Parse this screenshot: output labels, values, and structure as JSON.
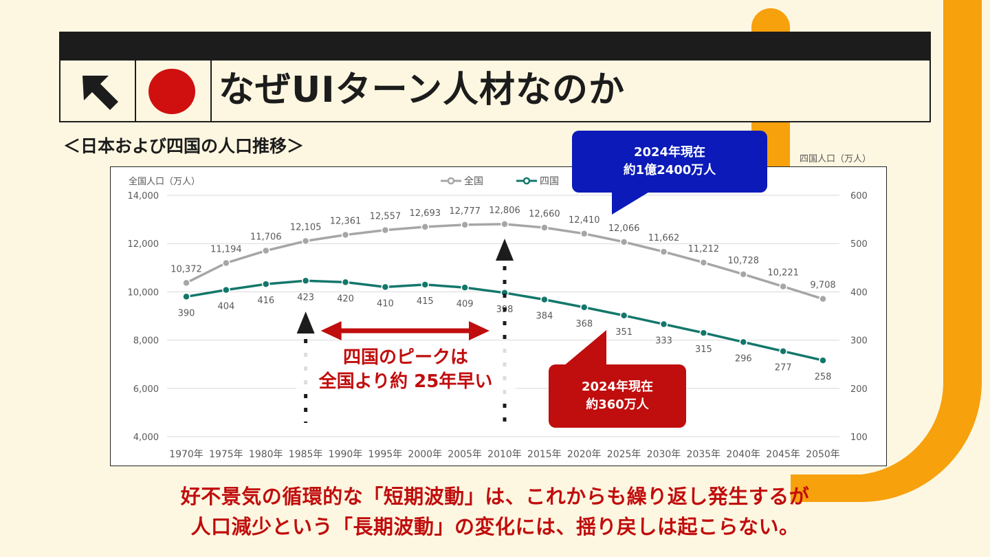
{
  "header": {
    "title": "なぜUIターン人材なのか",
    "icons": [
      "arrow-up-left-icon",
      "red-circle-icon"
    ],
    "dot_color": "#d00f0f"
  },
  "section_title": "＜日本および四国の人口推移＞",
  "chart_data": {
    "type": "line",
    "categories": [
      "1970年",
      "1975年",
      "1980年",
      "1985年",
      "1990年",
      "1995年",
      "2000年",
      "2005年",
      "2010年",
      "2015年",
      "2020年",
      "2025年",
      "2030年",
      "2035年",
      "2040年",
      "2045年",
      "2050年"
    ],
    "series": [
      {
        "name": "全国",
        "axis": "left",
        "color": "#a6a6a6",
        "values": [
          10372,
          11194,
          11706,
          12105,
          12361,
          12557,
          12693,
          12777,
          12806,
          12660,
          12410,
          12066,
          11662,
          11212,
          10728,
          10221,
          9708
        ],
        "labels": [
          "10,372",
          "11,194",
          "11,706",
          "12,105",
          "12,361",
          "12,557",
          "12,693",
          "12,777",
          "12,806",
          "12,660",
          "12,410",
          "12,066",
          "11,662",
          "11,212",
          "10,728",
          "10,221",
          "9,708"
        ]
      },
      {
        "name": "四国",
        "axis": "right",
        "color": "#13776b",
        "values": [
          390,
          404,
          416,
          423,
          420,
          410,
          415,
          409,
          398,
          384,
          368,
          351,
          333,
          315,
          296,
          277,
          258
        ],
        "labels": [
          "390",
          "404",
          "416",
          "423",
          "420",
          "410",
          "415",
          "409",
          "398",
          "384",
          "368",
          "351",
          "333",
          "315",
          "296",
          "277",
          "258"
        ]
      }
    ],
    "ylabel_left": "全国人口（万人）",
    "ylabel_right": "四国人口（万人）",
    "ylim_left": [
      4000,
      14000
    ],
    "ylim_right": [
      100,
      600
    ],
    "yticks_left": [
      "4,000",
      "6,000",
      "8,000",
      "10,000",
      "12,000",
      "14,000"
    ],
    "yticks_right": [
      "100",
      "200",
      "300",
      "400",
      "500",
      "600"
    ],
    "grid": true,
    "legend_position": "top-center"
  },
  "annotations": {
    "callout_national": [
      "2024年現在",
      "約1億2400万人"
    ],
    "callout_shikoku": [
      "2024年現在",
      "約360万人"
    ],
    "peak_note": [
      "四国のピークは",
      "全国より約 25年早い"
    ],
    "peak_markers": [
      "1985年",
      "2010年"
    ],
    "colors": {
      "blue": "#0b1ab8",
      "red": "#c00d0d"
    }
  },
  "message": {
    "line1": "好不景気の循環的な「短期波動」は、これからも繰り返し発生するが",
    "line2": "人口減少という「長期波動」の変化には、揺り戻しは起こらない。"
  }
}
